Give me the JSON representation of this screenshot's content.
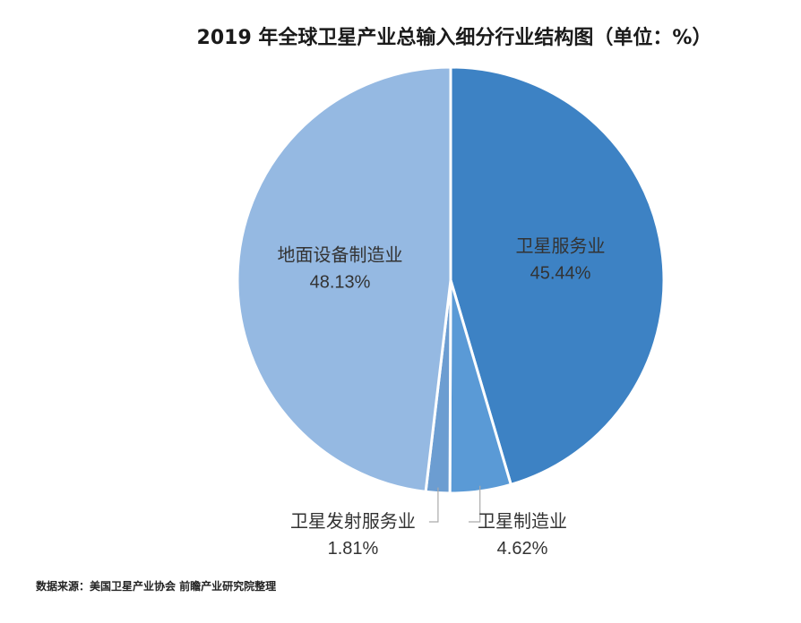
{
  "chart_data": {
    "type": "pie",
    "title": "2019 年全球卫星产业总输入细分行业结构图（单位：%）",
    "unit": "%",
    "slices": [
      {
        "name": "卫星服务业",
        "value": 45.44,
        "value_label": "45.44%",
        "color": "#3d82c4"
      },
      {
        "name": "卫星制造业",
        "value": 4.62,
        "value_label": "4.62%",
        "color": "#5a9ad6"
      },
      {
        "name": "卫星发射服务业",
        "value": 1.81,
        "value_label": "1.81%",
        "color": "#6c9dd1"
      },
      {
        "name": "地面设备制造业",
        "value": 48.13,
        "value_label": "48.13%",
        "color": "#95b9e2"
      }
    ],
    "source": "数据来源：美国卫星产业协会 前瞻产业研究院整理"
  }
}
